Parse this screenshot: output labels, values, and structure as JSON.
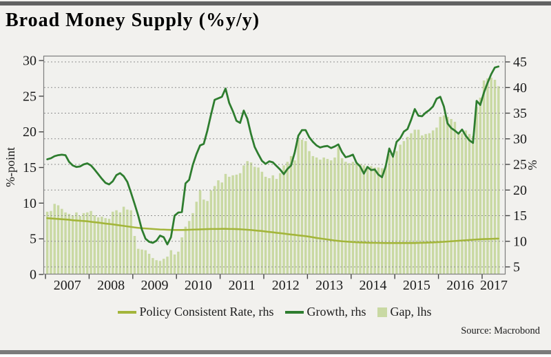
{
  "page": {
    "title": "Broad Money Supply (%y/y)",
    "source": "Source: Macrobond"
  },
  "chart_data": {
    "type": "combo",
    "title": "Broad Money Supply (%y/y)",
    "frequency": "monthly",
    "x_start": "2007-01",
    "x_end": "2017-05",
    "x_tick_years": [
      "2007",
      "2008",
      "2009",
      "2010",
      "2011",
      "2012",
      "2013",
      "2014",
      "2015",
      "2016",
      "2017"
    ],
    "left_axis": {
      "label": "%-point",
      "min": 0,
      "max": 30,
      "ticks": [
        0,
        5,
        10,
        15,
        20,
        25,
        30
      ]
    },
    "right_axis": {
      "label": "%",
      "min": 5,
      "max": 45,
      "ticks": [
        5,
        10,
        15,
        20,
        25,
        30,
        35,
        40,
        45
      ]
    },
    "grid": "horizontal dashed lines at right-axis ticks",
    "legend_position": "bottom-center",
    "colors": {
      "background": "#f2f1ee",
      "grid": "#8f8f8f",
      "frame": "#7d7d7d",
      "tick": "#444444"
    },
    "series": [
      {
        "name": "Policy Consistent Rate, rhs",
        "type": "line",
        "axis": "right",
        "color": "#a3b53a",
        "legend_swatch": "line",
        "values": [
          14.5,
          14.45,
          14.4,
          14.35,
          14.3,
          14.25,
          14.2,
          14.1,
          14.05,
          14.0,
          13.95,
          13.9,
          13.8,
          13.72,
          13.65,
          13.55,
          13.45,
          13.38,
          13.3,
          13.2,
          13.1,
          13.0,
          12.9,
          12.8,
          12.7,
          12.62,
          12.55,
          12.5,
          12.45,
          12.4,
          12.35,
          12.3,
          12.28,
          12.25,
          12.22,
          12.2,
          12.2,
          12.2,
          12.22,
          12.25,
          12.28,
          12.3,
          12.32,
          12.35,
          12.38,
          12.4,
          12.4,
          12.4,
          12.42,
          12.42,
          12.4,
          12.4,
          12.38,
          12.35,
          12.3,
          12.25,
          12.2,
          12.12,
          12.05,
          12.0,
          11.9,
          11.82,
          11.75,
          11.65,
          11.58,
          11.5,
          11.4,
          11.32,
          11.25,
          11.15,
          11.08,
          11.0,
          10.9,
          10.78,
          10.65,
          10.55,
          10.45,
          10.35,
          10.25,
          10.15,
          10.08,
          10.0,
          9.95,
          9.9,
          9.85,
          9.8,
          9.78,
          9.75,
          9.72,
          9.7,
          9.7,
          9.68,
          9.67,
          9.66,
          9.65,
          9.65,
          9.65,
          9.65,
          9.65,
          9.65,
          9.65,
          9.66,
          9.68,
          9.7,
          9.72,
          9.75,
          9.78,
          9.82,
          9.86,
          9.9,
          9.95,
          10.0,
          10.05,
          10.1,
          10.15,
          10.2,
          10.25,
          10.3,
          10.35,
          10.4,
          10.43,
          10.45,
          10.47,
          10.5,
          10.52
        ]
      },
      {
        "name": "Growth, rhs",
        "type": "line",
        "axis": "right",
        "color": "#2e7d2f",
        "legend_swatch": "line",
        "values": [
          26.0,
          26.2,
          26.6,
          26.8,
          26.9,
          26.8,
          25.5,
          24.8,
          24.5,
          24.6,
          25.0,
          25.2,
          24.8,
          24.0,
          23.1,
          22.2,
          21.4,
          21.1,
          21.7,
          22.9,
          23.3,
          22.7,
          21.6,
          19.5,
          17.3,
          15.0,
          12.3,
          10.5,
          9.9,
          9.7,
          10.1,
          11.1,
          10.8,
          9.4,
          10.8,
          15.0,
          15.6,
          15.7,
          21.3,
          22.0,
          24.9,
          27.0,
          28.7,
          29.0,
          31.6,
          34.7,
          37.6,
          37.9,
          38.2,
          39.8,
          37.0,
          35.4,
          33.5,
          33.1,
          35.5,
          33.9,
          30.9,
          28.4,
          27.0,
          25.7,
          25.1,
          25.6,
          25.4,
          24.7,
          24.0,
          23.1,
          24.1,
          24.8,
          27.3,
          30.6,
          31.7,
          31.7,
          30.3,
          29.4,
          28.7,
          28.3,
          28.5,
          28.6,
          28.2,
          28.5,
          28.9,
          27.4,
          26.4,
          26.6,
          26.9,
          25.3,
          24.6,
          23.2,
          24.5,
          23.9,
          24.0,
          23.0,
          22.5,
          24.6,
          28.1,
          26.5,
          29.4,
          30.1,
          31.4,
          31.9,
          33.7,
          35.8,
          34.5,
          34.4,
          35.1,
          35.6,
          36.3,
          37.8,
          38.2,
          36.3,
          33.0,
          32.1,
          31.6,
          31.0,
          31.8,
          30.6,
          29.7,
          29.2,
          37.4,
          36.6,
          39.0,
          40.9,
          42.6,
          43.9,
          44.1
        ]
      },
      {
        "name": "Gap, lhs",
        "type": "bar",
        "axis": "left",
        "color": "#c9d9a3",
        "legend_swatch": "square",
        "values": [
          8.8,
          8.9,
          9.9,
          9.7,
          9.2,
          8.7,
          8.5,
          8.3,
          8.7,
          8.2,
          8.6,
          8.7,
          8.9,
          8.3,
          8.0,
          8.1,
          7.9,
          7.8,
          8.8,
          9.0,
          8.7,
          9.5,
          9.1,
          9.0,
          5.4,
          3.6,
          3.5,
          3.4,
          2.9,
          2.3,
          2.0,
          1.9,
          2.2,
          2.5,
          3.4,
          2.8,
          3.2,
          5.2,
          6.7,
          7.5,
          8.6,
          10.2,
          11.8,
          10.5,
          10.3,
          11.8,
          12.4,
          13.2,
          12.9,
          14.1,
          13.7,
          13.9,
          14.0,
          14.2,
          15.3,
          15.9,
          15.7,
          15.1,
          15.0,
          14.4,
          13.7,
          13.5,
          13.9,
          13.4,
          14.2,
          15.3,
          15.8,
          16.6,
          16.0,
          18.9,
          18.9,
          18.7,
          17.3,
          16.6,
          16.4,
          16.1,
          16.4,
          16.2,
          16.0,
          16.4,
          17.9,
          16.3,
          15.8,
          15.6,
          15.8,
          15.5,
          15.5,
          15.3,
          15.2,
          15.2,
          15.0,
          15.0,
          14.9,
          15.3,
          16.9,
          16.5,
          17.3,
          18.2,
          18.7,
          19.3,
          19.8,
          20.3,
          20.3,
          19.5,
          19.7,
          19.8,
          20.2,
          20.6,
          22.1,
          22.3,
          22.1,
          21.8,
          21.4,
          19.7,
          19.8,
          20.2,
          19.7,
          19.4,
          23.5,
          24.8,
          27.2,
          27.5,
          27.6,
          27.3,
          26.4
        ]
      }
    ]
  }
}
